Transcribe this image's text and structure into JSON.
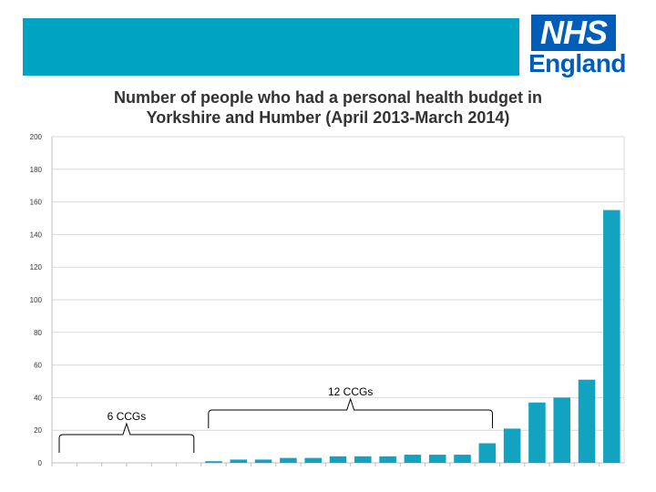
{
  "header": {
    "band_color": "#00a4c3",
    "logo": {
      "box_text": "NHS",
      "text": "England",
      "color": "#005eb8"
    }
  },
  "chart_data": {
    "type": "bar",
    "title": "Number of people who had a personal health budget in Yorkshire and Humber (April 2013-March 2014)",
    "title_lines": [
      "Number of people who had a personal health budget in",
      "Yorkshire and Humber (April 2013-March 2014)"
    ],
    "xlabel": "",
    "ylabel": "",
    "ylim": [
      0,
      200
    ],
    "yticks": [
      0,
      20,
      40,
      60,
      80,
      100,
      120,
      140,
      160,
      180,
      200
    ],
    "ytick_labels": [
      "0",
      "20",
      "40",
      "60",
      "80",
      "100",
      "120",
      "140",
      "160",
      "180",
      "200"
    ],
    "values": [
      0,
      0,
      0,
      0,
      0,
      0,
      1,
      2,
      2,
      3,
      3,
      4,
      4,
      4,
      5,
      5,
      5,
      12,
      21,
      37,
      40,
      51,
      155
    ],
    "bar_color": "#12a3c0",
    "grid": true,
    "annotations": [
      {
        "text": "6 CCGs",
        "from_index": 0,
        "to_index": 5
      },
      {
        "text": "12 CCGs",
        "from_index": 6,
        "to_index": 17
      }
    ]
  }
}
